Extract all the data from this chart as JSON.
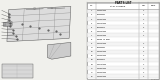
{
  "bg_color": "#f0f0ec",
  "draw_bg": "#f0f0ec",
  "table_bg": "#ffffff",
  "rows": [
    [
      "1",
      "62090PA000",
      "1",
      ""
    ],
    [
      "2",
      "909550002",
      "2",
      ""
    ],
    [
      "3",
      "62020PA000",
      "1",
      ""
    ],
    [
      "4",
      "62021PA000",
      "1",
      ""
    ],
    [
      "5",
      "909360014",
      "2",
      ""
    ],
    [
      "6",
      "62022PA000",
      "1",
      ""
    ],
    [
      "7",
      "62023PA000",
      "1",
      ""
    ],
    [
      "8",
      "REFER TO BODY",
      "",
      ""
    ],
    [
      "9",
      "62024PA000",
      "1",
      ""
    ],
    [
      "10",
      "909550002",
      "2",
      ""
    ],
    [
      "11",
      "62025PA000",
      "1",
      ""
    ],
    [
      "12",
      "62026PA000",
      "1",
      ""
    ],
    [
      "13",
      "909360014",
      "2",
      ""
    ],
    [
      "14",
      "62027PA000",
      "1",
      ""
    ],
    [
      "15",
      "62028PA000",
      "1",
      ""
    ],
    [
      "16",
      "62029PA000",
      "1",
      ""
    ],
    [
      "17",
      "62030PA000",
      "1",
      ""
    ]
  ],
  "text_color": "#111111",
  "line_color": "#999999",
  "part_id": "62090PA000"
}
